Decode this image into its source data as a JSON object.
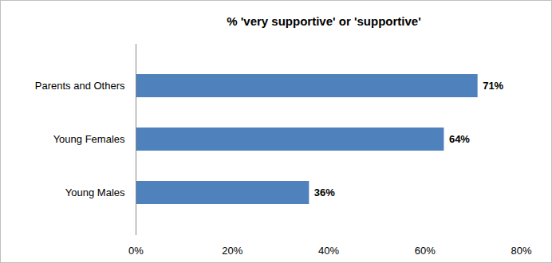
{
  "chart_data": {
    "type": "bar",
    "orientation": "horizontal",
    "title": "% 'very supportive' or 'supportive'",
    "categories": [
      "Parents and Others",
      "Young Females",
      "Young Males"
    ],
    "values": [
      71,
      64,
      36
    ],
    "value_labels": [
      "71%",
      "64%",
      "36%"
    ],
    "data_labels": true,
    "color": "#4f81bd",
    "xlim": [
      0,
      80
    ],
    "xticks": [
      {
        "value": 0,
        "label": "0%"
      },
      {
        "value": 20,
        "label": "20%"
      },
      {
        "value": 40,
        "label": "40%"
      },
      {
        "value": 60,
        "label": "60%"
      },
      {
        "value": 80,
        "label": "80%"
      }
    ],
    "grid": false
  }
}
